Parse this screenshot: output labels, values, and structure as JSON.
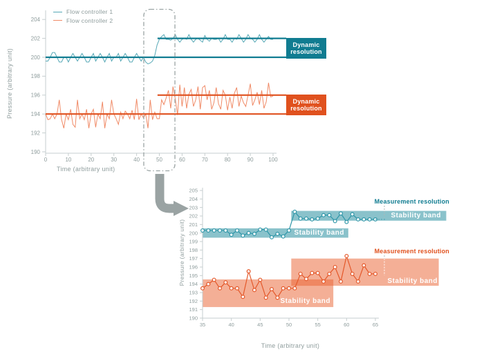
{
  "colors": {
    "teal": "#107c91",
    "teal_jagged": "#56a8b6",
    "teal_marker_line": "#2e96a8",
    "teal_band": "#8ac2cb",
    "orange": "#e0511e",
    "orange_jagged": "#f08a66",
    "orange_marker_line": "#e4582a",
    "orange_band": "rgba(233,95,45,0.5)",
    "axis": "#c6cecf",
    "tick_text": "#8f9d9d",
    "gray_arrow": "#9aa3a3"
  },
  "top_chart": {
    "type": "line",
    "ylabel": "Pressure (arbitrary unit)",
    "xlabel": "Time (arbitrary unit)",
    "yticks": [
      204,
      202,
      200,
      198,
      196,
      194,
      192,
      190
    ],
    "xticks": [
      0,
      10,
      20,
      30,
      40,
      50,
      60,
      70,
      80,
      90,
      100
    ],
    "ylim": [
      190,
      205
    ],
    "xlim": [
      0,
      100
    ],
    "legend": [
      {
        "label": "Flow controller 1",
        "color": "#56a8b6"
      },
      {
        "label": "Flow controller 2",
        "color": "#f08a66"
      }
    ],
    "series": [
      {
        "name": "Flow controller 1",
        "color": "#56a8b6",
        "x_start": 0,
        "x_step": 1,
        "values": [
          199.6,
          199.6,
          200.0,
          200.5,
          200.5,
          200.0,
          199.5,
          199.5,
          200.0,
          200.0,
          199.5,
          200.0,
          200.4,
          200.0,
          199.6,
          200.0,
          200.4,
          200.0,
          199.5,
          199.5,
          200.0,
          200.4,
          199.6,
          200.0,
          200.4,
          200.0,
          199.5,
          200.0,
          200.4,
          199.6,
          200.0,
          200.0,
          200.4,
          199.6,
          200.0,
          200.4,
          200.0,
          199.5,
          199.5,
          200.0,
          200.4,
          200.0,
          199.6,
          200.0,
          199.5,
          199.3,
          199.4,
          199.6,
          200.2,
          201.3,
          201.9,
          202.2,
          202.4,
          201.9,
          201.9,
          201.8,
          202.0,
          202.4,
          201.9,
          201.6,
          201.9,
          202.0,
          201.9,
          202.4,
          201.9,
          201.6,
          201.9,
          202.0,
          201.8,
          201.6,
          202.3,
          201.9,
          201.7,
          202.0,
          201.9,
          201.9,
          202.0,
          201.6,
          201.9,
          202.4,
          201.9,
          201.9,
          201.6,
          202.0,
          201.9,
          202.4,
          202.0,
          201.6,
          201.9,
          202.4,
          202.0,
          201.9,
          201.6,
          201.9,
          202.4,
          201.9,
          201.6,
          201.9,
          202.2,
          201.9,
          201.9
        ]
      },
      {
        "name": "Flow controller 2",
        "color": "#f08a66",
        "x_start": 0,
        "x_step": 1,
        "values": [
          194.0,
          193.4,
          193.5,
          194.0,
          193.5,
          194.0,
          195.5,
          193.4,
          192.5,
          194.0,
          193.4,
          194.5,
          192.9,
          192.6,
          195.5,
          193.5,
          194.0,
          193.4,
          194.5,
          192.5,
          194.0,
          194.5,
          192.6,
          194.0,
          193.5,
          195.3,
          192.5,
          194.0,
          193.5,
          195.5,
          194.0,
          193.5,
          192.9,
          194.2,
          193.5,
          194.3,
          194.0,
          193.5,
          194.4,
          193.4,
          195.6,
          193.4,
          194.0,
          193.6,
          194.0,
          192.5,
          195.5,
          193.4,
          194.2,
          193.5,
          193.5,
          195.5,
          195.0,
          195.7,
          196.5,
          194.6,
          196.9,
          195.6,
          193.9,
          197.1,
          194.8,
          196.8,
          194.6,
          196.1,
          196.6,
          194.8,
          195.5,
          196.9,
          194.5,
          196.8,
          197.0,
          195.5,
          196.5,
          194.5,
          195.2,
          196.8,
          195.1,
          194.5,
          196.5,
          196.0,
          194.4,
          195.8,
          194.6,
          196.2,
          196.8,
          194.8,
          195.9,
          195.2,
          194.8,
          196.0,
          197.2,
          194.9,
          195.5,
          196.3,
          195.0,
          196.5,
          194.6,
          195.3,
          197.3,
          195.8,
          195.9
        ]
      }
    ],
    "baselines": [
      {
        "series": "Flow controller 1",
        "value": 200,
        "x_from": 0,
        "color": "#107c91"
      },
      {
        "series": "Flow controller 1",
        "value": 202,
        "x_from": 49.2,
        "color": "#107c91"
      },
      {
        "series": "Flow controller 2",
        "value": 194,
        "x_from": 0,
        "color": "#e0511e"
      },
      {
        "series": "Flow controller 2",
        "value": 196,
        "x_from": 49.2,
        "color": "#e0511e"
      }
    ],
    "annotations": [
      {
        "label": "Dynamic resolution",
        "color": "#107c91"
      },
      {
        "label": "Dynamic resolution",
        "color": "#e0511e"
      }
    ],
    "highlight_region": {
      "x_from": 43,
      "x_to": 57
    }
  },
  "bottom_chart": {
    "type": "line",
    "ylabel": "Pressure (arbitrary unit)",
    "xlabel": "Time (arbitrary unit)",
    "yticks": [
      205,
      204,
      203,
      202,
      201,
      200,
      199,
      198,
      197,
      196,
      195,
      194,
      193,
      192,
      191,
      190
    ],
    "xticks": [
      35,
      40,
      45,
      50,
      55,
      60,
      65
    ],
    "ylim": [
      190,
      205
    ],
    "xlim": [
      35,
      65
    ],
    "series": [
      {
        "name": "Flow controller 1",
        "color": "#2e96a8",
        "marker": "circle",
        "x_start": 35,
        "x_step": 1,
        "values": [
          200.3,
          200.3,
          200.3,
          200.3,
          200.3,
          199.8,
          200.3,
          199.7,
          200.0,
          199.9,
          200.4,
          200.4,
          199.5,
          199.9,
          199.6,
          200.3,
          202.5,
          201.7,
          201.7,
          201.6,
          201.7,
          202.1,
          202.1,
          201.4,
          202.3,
          201.3,
          202.2,
          201.6,
          201.6,
          201.6,
          201.6
        ]
      },
      {
        "name": "Flow controller 2",
        "color": "#e4582a",
        "marker": "circle",
        "x_start": 35,
        "x_step": 1,
        "values": [
          193.5,
          194.0,
          194.5,
          193.5,
          194.2,
          193.5,
          193.5,
          192.5,
          195.5,
          193.3,
          194.5,
          192.4,
          193.4,
          192.4,
          193.5,
          193.5,
          193.5,
          195.2,
          194.6,
          195.3,
          195.3,
          194.3,
          195.2,
          196.0,
          194.3,
          197.3,
          195.2,
          194.3,
          196.2,
          195.2,
          195.2
        ]
      }
    ],
    "bands": [
      {
        "series": "Flow controller 1",
        "label": "Stability band",
        "y_from": 199.45,
        "y_to": 200.55,
        "x_from": 35,
        "x_to": 60.3,
        "color": "#8ac2cb"
      },
      {
        "series": "Flow controller 1",
        "label": "Stability band",
        "y_from": 201.45,
        "y_to": 202.6,
        "x_from": 50.4,
        "x_to": 77.3,
        "color": "#8ac2cb"
      },
      {
        "series": "Flow controller 2",
        "label": "Stability band",
        "y_from": 191.3,
        "y_to": 194.55,
        "x_from": 35,
        "x_to": 57.7,
        "color": "rgba(233,95,45,0.5)"
      },
      {
        "series": "Flow controller 2",
        "label": "Stability band",
        "y_from": 193.8,
        "y_to": 197.0,
        "x_from": 50.4,
        "x_to": 76.0,
        "color": "rgba(233,95,45,0.5)"
      }
    ],
    "measurements": [
      {
        "label": "Measurement resolution",
        "color": "#107c91"
      },
      {
        "label": "Measurement resolution",
        "color": "#e0511e"
      }
    ]
  }
}
